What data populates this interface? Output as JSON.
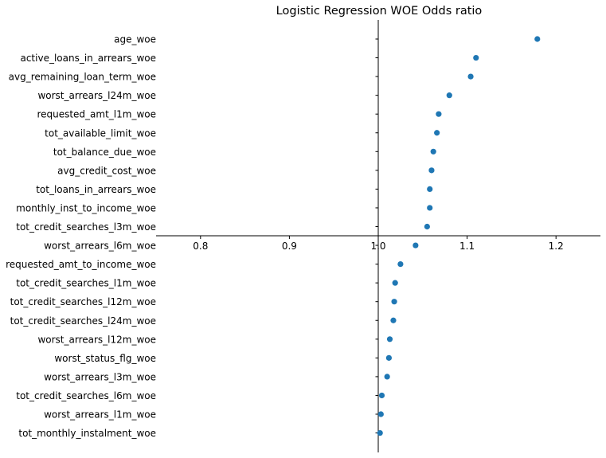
{
  "chart_data": {
    "type": "scatter",
    "title": "Logistic Regression WOE Odds ratio",
    "xlabel": "",
    "ylabel": "",
    "xlim": [
      0.75,
      1.25
    ],
    "xticks": [
      "0.8",
      "0.9",
      "1.0",
      "1.1",
      "1.2"
    ],
    "grid": false,
    "legend": null,
    "marker_color": "#1f77b4",
    "categories": [
      "age_woe",
      "active_loans_in_arrears_woe",
      "avg_remaining_loan_term_woe",
      "worst_arrears_l24m_woe",
      "requested_amt_l1m_woe",
      "tot_available_limit_woe",
      "tot_balance_due_woe",
      "avg_credit_cost_woe",
      "tot_loans_in_arrears_woe",
      "monthly_inst_to_income_woe",
      "tot_credit_searches_l3m_woe",
      "worst_arrears_l6m_woe",
      "requested_amt_to_income_woe",
      "tot_credit_searches_l1m_woe",
      "tot_credit_searches_l12m_woe",
      "tot_credit_searches_l24m_woe",
      "worst_arrears_l12m_woe",
      "worst_status_flg_woe",
      "worst_arrears_l3m_woe",
      "tot_credit_searches_l6m_woe",
      "worst_arrears_l1m_woe",
      "tot_monthly_instalment_woe"
    ],
    "values": [
      1.179,
      1.11,
      1.104,
      1.08,
      1.068,
      1.066,
      1.062,
      1.06,
      1.058,
      1.058,
      1.055,
      1.042,
      1.025,
      1.019,
      1.018,
      1.017,
      1.013,
      1.012,
      1.01,
      1.004,
      1.003,
      1.002
    ]
  }
}
